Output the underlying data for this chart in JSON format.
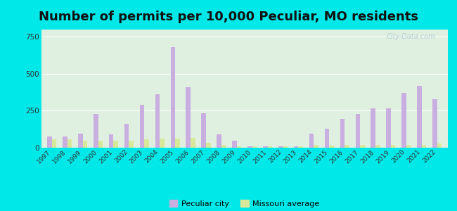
{
  "title": "Number of permits per 10,000 Peculiar, MO residents",
  "years": [
    1997,
    1998,
    1999,
    2000,
    2001,
    2002,
    2003,
    2004,
    2005,
    2006,
    2007,
    2008,
    2009,
    2010,
    2011,
    2012,
    2013,
    2014,
    2015,
    2016,
    2017,
    2018,
    2019,
    2020,
    2021,
    2022
  ],
  "peculiar": [
    75,
    75,
    95,
    230,
    90,
    160,
    290,
    360,
    680,
    410,
    235,
    90,
    50,
    10,
    10,
    10,
    10,
    95,
    130,
    195,
    230,
    265,
    265,
    370,
    420,
    330
  ],
  "missouri": [
    55,
    55,
    50,
    50,
    50,
    50,
    55,
    60,
    60,
    65,
    35,
    20,
    10,
    8,
    8,
    8,
    10,
    20,
    15,
    20,
    20,
    20,
    20,
    20,
    20,
    30
  ],
  "peculiar_color": "#c9aee0",
  "missouri_color": "#d8e89a",
  "title_fontsize": 13,
  "yticks": [
    0,
    250,
    500,
    750
  ],
  "ylim": [
    0,
    800
  ],
  "outer_bg": "#00e8e8",
  "plot_bg": "#e0f0e0",
  "legend_peculiar": "Peculiar city",
  "legend_missouri": "Missouri average"
}
